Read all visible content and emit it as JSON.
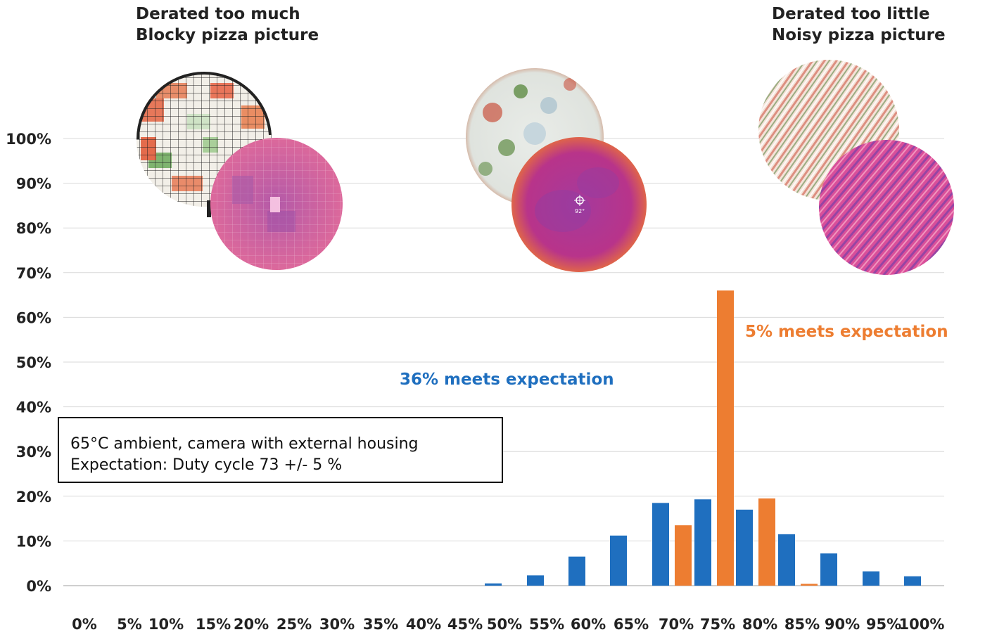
{
  "header_left": {
    "line1": "Derated too much",
    "line2": "Blocky pizza picture"
  },
  "header_right": {
    "line1": "Derated too little",
    "line2": "Noisy pizza picture"
  },
  "notes": {
    "blue": "36% meets expectation",
    "orange": "5% meets expectation"
  },
  "infobox": {
    "line1": "65°C ambient, camera with external housing",
    "line2": "Expectation: Duty cycle 73 +/- 5 %"
  },
  "colors": {
    "blue": "#1f6fbf",
    "orange": "#ed7d31",
    "grid": "#d9d9d9",
    "axis": "#bfbfbf"
  },
  "images": [
    "blocky-pizza-photo",
    "blocky-thermal-image",
    "normal-pizza-photo",
    "normal-thermal-image",
    "noisy-pizza-photo",
    "noisy-thermal-image"
  ],
  "chart_data": {
    "type": "bar",
    "categories": [
      "0%",
      "5%",
      "10%",
      "15%",
      "20%",
      "25%",
      "30%",
      "35%",
      "40%",
      "45%",
      "50%",
      "55%",
      "60%",
      "65%",
      "70%",
      "75%",
      "80%",
      "85%",
      "90%",
      "95%",
      "100%"
    ],
    "y_ticks": [
      "0%",
      "10%",
      "20%",
      "30%",
      "40%",
      "50%",
      "60%",
      "70%",
      "80%",
      "90%",
      "100%"
    ],
    "ylim": [
      0,
      100
    ],
    "grid": true,
    "series": [
      {
        "color": "#1f6fbf",
        "values": [
          0,
          0,
          0,
          0,
          0,
          0,
          0,
          0,
          0,
          0,
          0.5,
          2.3,
          6.5,
          11.2,
          18.5,
          19.3,
          17,
          11.5,
          7.2,
          3.2,
          2.1
        ]
      },
      {
        "color": "#ed7d31",
        "values": [
          0,
          0,
          0,
          0,
          0,
          0,
          0,
          0,
          0,
          0,
          0,
          0,
          0,
          0,
          13.5,
          66,
          19.5,
          0.4,
          0,
          0,
          0
        ]
      }
    ]
  }
}
